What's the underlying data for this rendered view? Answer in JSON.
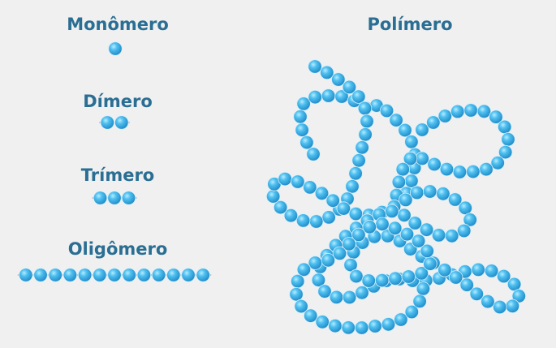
{
  "labels": {
    "monomer": "Monômero",
    "dimer": "Dímero",
    "trimer": "Trímero",
    "oligomer": "Oligômero",
    "polymer": "Polímero"
  },
  "colors": {
    "bead": "#2fa9e3",
    "bead_light": "#9fe0ff",
    "bead_dark": "#1b86c4",
    "label": "#2a6e93",
    "background": "#f0f0f0"
  },
  "chains": {
    "monomer_count": 1,
    "dimer_count": 2,
    "trimer_count": 3,
    "oligomer_count": 13
  }
}
